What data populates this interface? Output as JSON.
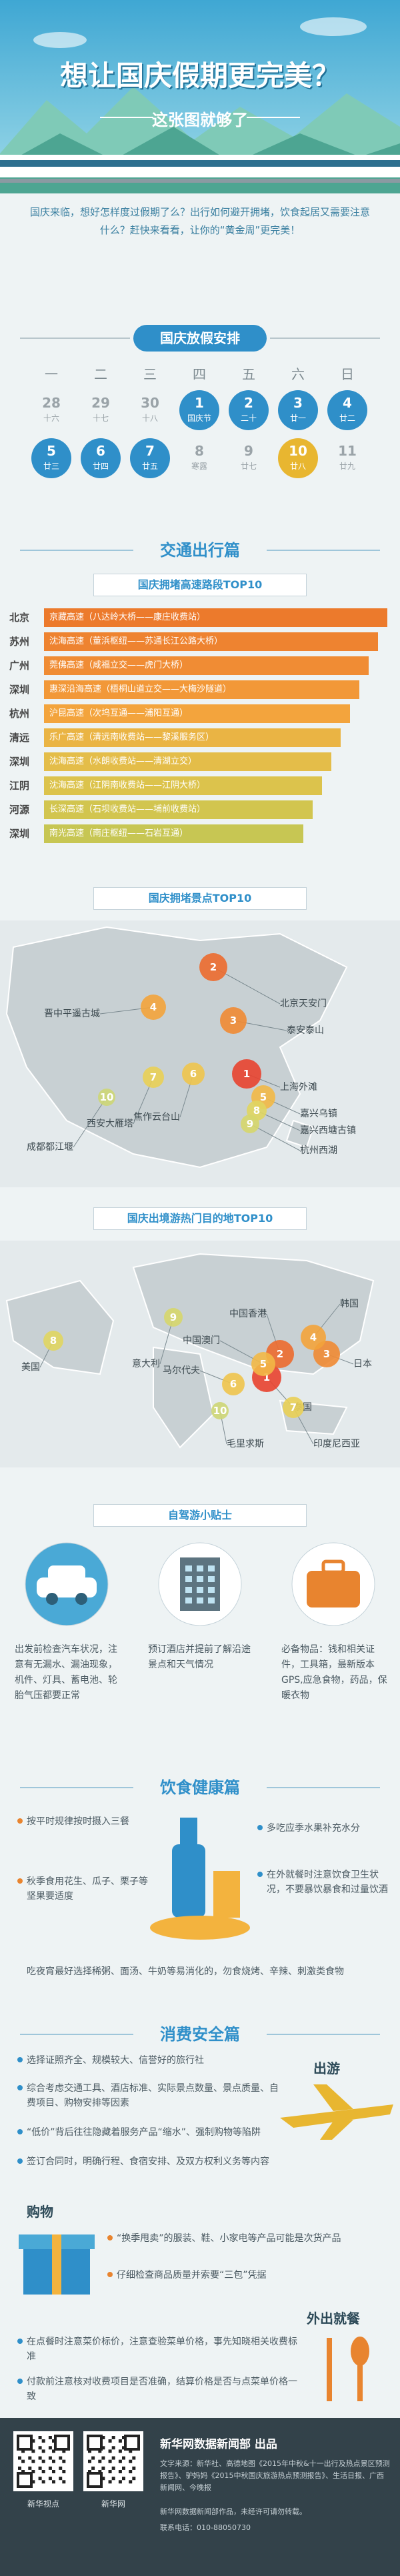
{
  "header": {
    "title": "想让国庆假期更完美？",
    "subtitle": "这张图就够了"
  },
  "intro": "国庆来临，想好怎样度过假期了么？出行如何避开拥堵，饮食起居又需要注意什么？赶快来看看，让你的“黄金周”更完美！",
  "schedule": {
    "title": "国庆放假安排",
    "weekdays": [
      "一",
      "二",
      "三",
      "四",
      "五",
      "六",
      "日"
    ],
    "rows": [
      [
        {
          "day": 28,
          "lunar": "十六",
          "color": "#9aa3a8"
        },
        {
          "day": 29,
          "lunar": "十七",
          "color": "#9aa3a8"
        },
        {
          "day": 30,
          "lunar": "十八",
          "color": "#9aa3a8"
        },
        {
          "day": 1,
          "lunar": "国庆节",
          "color": "#2f8fc9"
        },
        {
          "day": 2,
          "lunar": "二十",
          "color": "#2f8fc9"
        },
        {
          "day": 3,
          "lunar": "廿一",
          "color": "#2f8fc9"
        },
        {
          "day": 4,
          "lunar": "廿二",
          "color": "#2f8fc9"
        }
      ],
      [
        {
          "day": 5,
          "lunar": "廿三",
          "color": "#2f8fc9"
        },
        {
          "day": 6,
          "lunar": "廿四",
          "color": "#2f8fc9"
        },
        {
          "day": 7,
          "lunar": "廿五",
          "color": "#2f8fc9"
        },
        {
          "day": 8,
          "lunar": "寒露",
          "color": "#9aa3a8"
        },
        {
          "day": 9,
          "lunar": "廿七",
          "color": "#9aa3a8"
        },
        {
          "day": 10,
          "lunar": "廿八",
          "color": "#e8b630"
        },
        {
          "day": 11,
          "lunar": "廿九",
          "color": "#9aa3a8"
        }
      ]
    ]
  },
  "traffic": {
    "title": "交通出行篇",
    "highways": {
      "title": "国庆拥堵高速路段TOP10",
      "rows": [
        {
          "city": "北京",
          "road": "京藏高速（八达岭大桥——康庄收费站）"
        },
        {
          "city": "苏州",
          "road": "沈海高速（董浜枢纽——苏通长江公路大桥）"
        },
        {
          "city": "广州",
          "road": "莞佛高速（咸福立交——虎门大桥）"
        },
        {
          "city": "深圳",
          "road": "惠深沿海高速（梧桐山道立交——大梅沙隧道）"
        },
        {
          "city": "杭州",
          "road": "沪昆高速（次坞互通——浦阳互通）"
        },
        {
          "city": "清远",
          "road": "乐广高速（清远南收费站——黎溪服务区）"
        },
        {
          "city": "深圳",
          "road": "沈海高速（水朗收费站——清湖立交）"
        },
        {
          "city": "江阴",
          "road": "沈海高速（江阴南收费站——江阴大桥）"
        },
        {
          "city": "河源",
          "road": "长深高速（石坝收费站——埔前收费站）"
        },
        {
          "city": "深圳",
          "road": "南光高速（南庄枢纽——石岩互通）"
        }
      ]
    },
    "attractions": {
      "title": "国庆拥堵景点TOP10",
      "items": [
        {
          "rank": 1,
          "name": "上海外滩"
        },
        {
          "rank": 2,
          "name": "北京天安门"
        },
        {
          "rank": 3,
          "name": "泰安泰山"
        },
        {
          "rank": 4,
          "name": "晋中平遥古城"
        },
        {
          "rank": 5,
          "name": "嘉兴乌镇"
        },
        {
          "rank": 6,
          "name": "焦作云台山"
        },
        {
          "rank": 7,
          "name": "西安大雁塔"
        },
        {
          "rank": 8,
          "name": "嘉兴西塘古镇"
        },
        {
          "rank": 9,
          "name": "杭州西湖"
        },
        {
          "rank": 10,
          "name": "成都都江堰"
        }
      ]
    },
    "outbound": {
      "title": "国庆出境游热门目的地TOP10",
      "items": [
        {
          "rank": 1,
          "name": "泰国"
        },
        {
          "rank": 2,
          "name": "中国香港"
        },
        {
          "rank": 3,
          "name": "日本"
        },
        {
          "rank": 4,
          "name": "韩国"
        },
        {
          "rank": 5,
          "name": "中国澳门"
        },
        {
          "rank": 6,
          "name": "马尔代夫"
        },
        {
          "rank": 7,
          "name": "印度尼西亚"
        },
        {
          "rank": 8,
          "name": "美国"
        },
        {
          "rank": 9,
          "name": "意大利"
        },
        {
          "rank": 10,
          "name": "毛里求斯"
        }
      ]
    }
  },
  "selfdrive": {
    "title": "自驾游小贴士",
    "tips": [
      "出发前检查汽车状况，注意有无漏水、漏油现象，机件、灯具、蓄电池、轮胎气压都要正常",
      "预订酒店并提前了解沿途景点和天气情况",
      "必备物品：钱和相关证件，工具箱，最新版本GPS,应急食物，药品，保暖衣物"
    ]
  },
  "diet": {
    "title": "饮食健康篇",
    "left": [
      "按平时规律按时摄入三餐",
      "秋季食用花生、瓜子、栗子等坚果要适度"
    ],
    "right": [
      "多吃应季水果补充水分",
      "在外就餐时注意饮食卫生状况，不要暴饮暴食和过量饮酒"
    ],
    "bottom": "吃夜宵最好选择稀粥、面汤、牛奶等易消化的，勿食烧烤、辛辣、刺激类食物"
  },
  "consumer": {
    "title": "消费安全篇",
    "travel": {
      "label": "出游",
      "tips": [
        "选择证照齐全、规模较大、信誉好的旅行社",
        "综合考虑交通工具、酒店标准、实际景点数量、景点质量、自费项目、购物安排等因素",
        "“低价”背后往往隐藏着服务产品“缩水”、强制购物等陷阱",
        "签订合同时，明确行程、食宿安排、及双方权利义务等内容"
      ]
    },
    "shopping": {
      "label": "购物",
      "tips": [
        "“换季甩卖”的服装、鞋、小家电等产品可能是次货产品",
        "仔细检查商品质量并索要“三包”凭据"
      ]
    },
    "dining": {
      "label": "外出就餐",
      "tips": [
        "在点餐时注意菜价标价，注意查验菜单价格，事先知晓相关收费标准",
        "付款前注意核对收费项目是否准确，结算价格是否与点菜单价格一致"
      ]
    }
  },
  "footer": {
    "qr_labels": [
      "新华视点",
      "新华网"
    ],
    "producer": "新华网数据新闻部 出品",
    "credits": [
      "文字来源：新华社、高德地图《2015年中秋&十一出行及热点景区预测报告》、驴妈妈《2015中秋国庆旅游热点预测报告》、生活日报、广西新闻网、今晚报",
      "新华网数据新闻部作品，未经许可请勿转载。",
      "联系电话：010-88050730"
    ]
  }
}
